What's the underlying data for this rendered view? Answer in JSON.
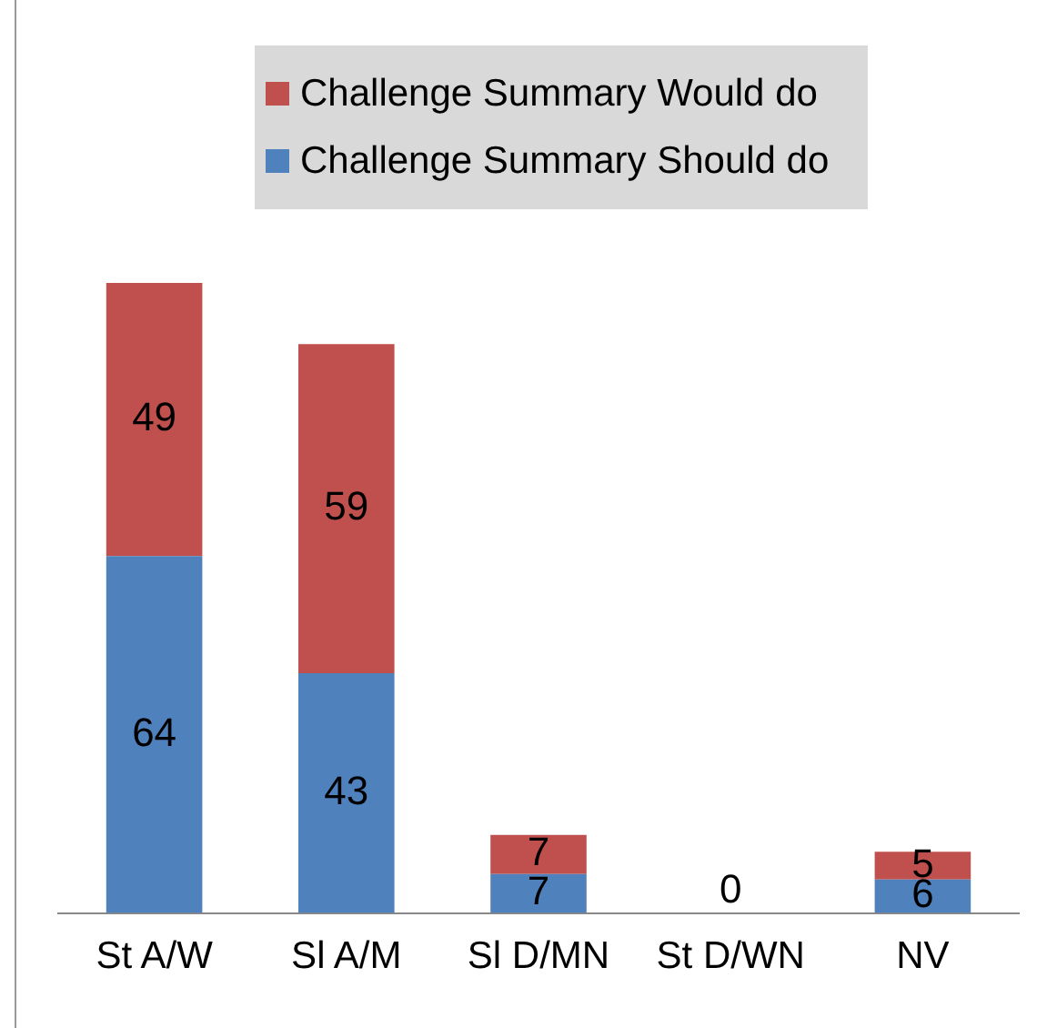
{
  "chart_data": {
    "type": "bar",
    "stacked": true,
    "categories": [
      "St A/W",
      "Sl A/M",
      "Sl D/MN",
      "St D/WN",
      "NV"
    ],
    "series": [
      {
        "name": "Challenge Summary Should do",
        "color": "#4f81bd",
        "values": [
          64,
          43,
          7,
          0,
          6
        ],
        "value_labels": [
          "64",
          "43",
          "7",
          "0",
          "6"
        ]
      },
      {
        "name": "Challenge Summary Would do",
        "color": "#c0504d",
        "values": [
          49,
          59,
          7,
          0,
          5
        ],
        "value_labels": [
          "49",
          "59",
          "7",
          null,
          "5"
        ]
      }
    ],
    "legend": "top",
    "grid": false
  }
}
